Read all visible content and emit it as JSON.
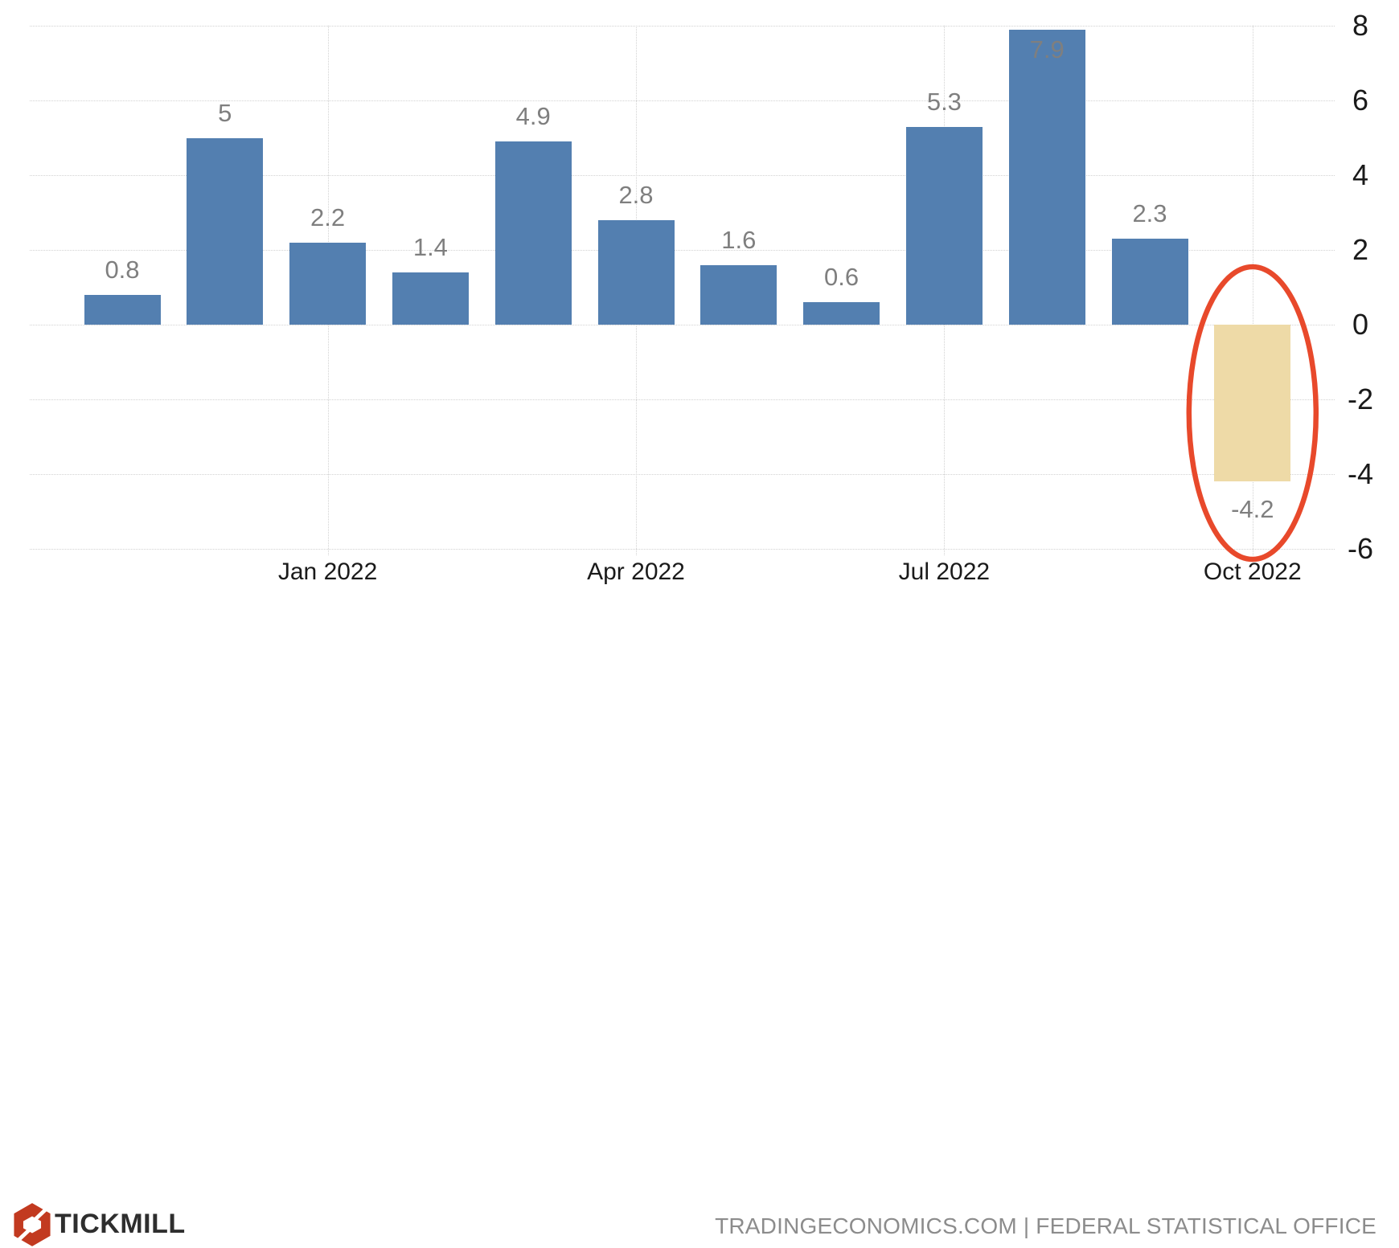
{
  "chart_data": {
    "type": "bar",
    "bars": [
      {
        "label": "0.8",
        "value": 0.8,
        "highlight": false
      },
      {
        "label": "5",
        "value": 5,
        "highlight": false
      },
      {
        "label": "2.2",
        "value": 2.2,
        "highlight": false
      },
      {
        "label": "1.4",
        "value": 1.4,
        "highlight": false
      },
      {
        "label": "4.9",
        "value": 4.9,
        "highlight": false
      },
      {
        "label": "2.8",
        "value": 2.8,
        "highlight": false
      },
      {
        "label": "1.6",
        "value": 1.6,
        "highlight": false
      },
      {
        "label": "0.6",
        "value": 0.6,
        "highlight": false
      },
      {
        "label": "5.3",
        "value": 5.3,
        "highlight": false
      },
      {
        "label": "7.9",
        "value": 7.9,
        "highlight": false
      },
      {
        "label": "2.3",
        "value": 2.3,
        "highlight": false
      },
      {
        "label": "-4.2",
        "value": -4.2,
        "highlight": true
      }
    ],
    "x_tick_labels": [
      "Jan 2022",
      "Apr 2022",
      "Jul 2022",
      "Oct 2022"
    ],
    "x_tick_bar_indices": [
      2,
      5,
      8,
      11
    ],
    "y_tick_labels": [
      "8",
      "6",
      "4",
      "2",
      "0",
      "-2",
      "-4",
      "-6"
    ],
    "y_ticks": [
      8,
      6,
      4,
      2,
      0,
      -2,
      -4,
      -6
    ],
    "ylim": [
      -6,
      8
    ],
    "grid": "dotted",
    "legend": "none",
    "annotation": {
      "shape": "ellipse",
      "target_bar_label": "-4.2",
      "purpose": "highlight-latest-value"
    },
    "colors": {
      "bar": "#537fb0",
      "highlight_bar": "#eedaa7",
      "annotation": "#e8492b",
      "value_label": "#7f7f7f",
      "axis_label": "#1a1a1a",
      "grid": "#d2d2d2"
    }
  },
  "footer": {
    "brand": "TICKMILL",
    "source": "TRADINGECONOMICS.COM | FEDERAL STATISTICAL OFFICE",
    "colors": {
      "logo": "#c23a20",
      "brand_text": "#2e2e2e",
      "source_text": "#8c8c8c"
    }
  }
}
